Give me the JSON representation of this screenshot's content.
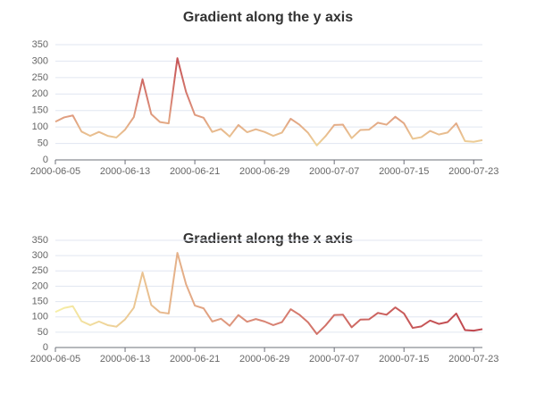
{
  "chart_data": [
    {
      "type": "line",
      "title": "Gradient along the y axis",
      "gradient": "y",
      "colors": [
        "#f6efa6",
        "#d88273",
        "#bf444c"
      ],
      "categories": [
        "2000-06-05",
        null,
        null,
        null,
        null,
        null,
        null,
        null,
        "2000-06-13",
        null,
        null,
        null,
        null,
        null,
        null,
        null,
        "2000-06-21",
        null,
        null,
        null,
        null,
        null,
        null,
        null,
        "2000-06-29",
        null,
        null,
        null,
        null,
        null,
        null,
        null,
        "2000-07-07",
        null,
        null,
        null,
        null,
        null,
        null,
        null,
        "2000-07-15",
        null,
        null,
        null,
        null,
        null,
        null,
        null,
        "2000-07-23",
        null
      ],
      "values": [
        116,
        129,
        135,
        86,
        73,
        85,
        73,
        68,
        92,
        130,
        245,
        139,
        115,
        111,
        309,
        206,
        137,
        128,
        85,
        94,
        71,
        106,
        84,
        93,
        85,
        73,
        83,
        125,
        107,
        82,
        44,
        72,
        106,
        107,
        66,
        91,
        92,
        113,
        107,
        131,
        111,
        64,
        69,
        88,
        77,
        83,
        111,
        57,
        55,
        60
      ],
      "ylim": [
        0,
        350
      ],
      "yticks": [
        0,
        50,
        100,
        150,
        200,
        250,
        300,
        350
      ],
      "grid": true
    },
    {
      "type": "line",
      "title": "Gradient along the x axis",
      "gradient": "x",
      "colors": [
        "#f6efa6",
        "#d88273",
        "#bf444c"
      ],
      "categories": [
        "2000-06-05",
        null,
        null,
        null,
        null,
        null,
        null,
        null,
        "2000-06-13",
        null,
        null,
        null,
        null,
        null,
        null,
        null,
        "2000-06-21",
        null,
        null,
        null,
        null,
        null,
        null,
        null,
        "2000-06-29",
        null,
        null,
        null,
        null,
        null,
        null,
        null,
        "2000-07-07",
        null,
        null,
        null,
        null,
        null,
        null,
        null,
        "2000-07-15",
        null,
        null,
        null,
        null,
        null,
        null,
        null,
        "2000-07-23",
        null
      ],
      "values": [
        116,
        129,
        135,
        86,
        73,
        85,
        73,
        68,
        92,
        130,
        245,
        139,
        115,
        111,
        309,
        206,
        137,
        128,
        85,
        94,
        71,
        106,
        84,
        93,
        85,
        73,
        83,
        125,
        107,
        82,
        44,
        72,
        106,
        107,
        66,
        91,
        92,
        113,
        107,
        131,
        111,
        64,
        69,
        88,
        77,
        83,
        111,
        57,
        55,
        60
      ],
      "ylim": [
        0,
        350
      ],
      "yticks": [
        0,
        50,
        100,
        150,
        200,
        250,
        300,
        350
      ],
      "grid": true
    }
  ]
}
